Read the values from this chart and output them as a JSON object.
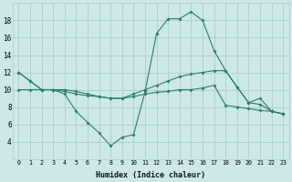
{
  "xlabel": "Humidex (Indice chaleur)",
  "x": [
    0,
    1,
    2,
    3,
    4,
    5,
    6,
    7,
    8,
    9,
    10,
    11,
    12,
    13,
    14,
    15,
    16,
    17,
    18,
    19,
    20,
    21,
    22,
    23
  ],
  "line1": [
    12,
    11,
    10,
    10,
    9.5,
    7.5,
    6.2,
    5.0,
    3.5,
    4.5,
    4.8,
    9.8,
    16.5,
    18.2,
    18.2,
    19.0,
    18.0,
    14.5,
    12.2,
    10.3,
    8.5,
    9.0,
    7.5,
    7.2
  ],
  "line2": [
    12,
    11,
    10,
    10,
    9.8,
    9.5,
    9.3,
    9.2,
    9.0,
    9.0,
    9.5,
    10.0,
    10.5,
    11.0,
    11.5,
    11.8,
    12.0,
    12.2,
    12.2,
    10.3,
    8.5,
    8.3,
    7.5,
    7.2
  ],
  "line3": [
    10,
    10,
    10,
    10,
    10.0,
    9.8,
    9.5,
    9.2,
    9.0,
    9.0,
    9.2,
    9.5,
    9.7,
    9.8,
    10.0,
    10.0,
    10.2,
    10.5,
    8.2,
    8.0,
    7.8,
    7.6,
    7.5,
    7.2
  ],
  "line_color": "#2d7d6e",
  "bg_color": "#cde8e8",
  "grid_color": "#aacece",
  "ylim": [
    2,
    20
  ],
  "yticks": [
    4,
    6,
    8,
    10,
    12,
    14,
    16,
    18
  ],
  "xlim_min": -0.5,
  "xlim_max": 23.5,
  "xticks": [
    0,
    1,
    2,
    3,
    4,
    5,
    6,
    7,
    8,
    9,
    10,
    11,
    12,
    13,
    14,
    15,
    16,
    17,
    18,
    19,
    20,
    21,
    22,
    23
  ]
}
